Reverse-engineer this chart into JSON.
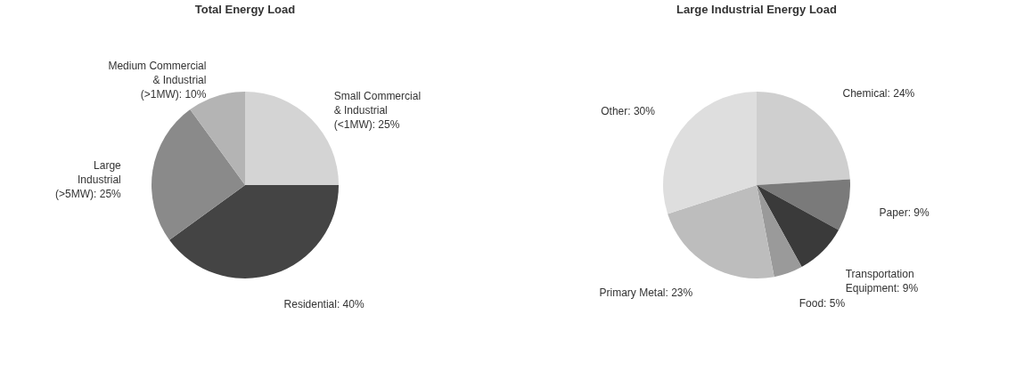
{
  "chart_data": [
    {
      "type": "pie",
      "title": "Total Energy Load",
      "categories": [
        "Small Commercial\n& Industrial\n(<1MW)",
        "Residential",
        "Large\nIndustrial\n(>5MW)",
        "Medium Commercial\n& Industrial\n(>1MW)"
      ],
      "values": [
        25,
        40,
        25,
        10
      ],
      "value_labels": [
        "25%",
        "40%",
        "25%",
        "10%"
      ],
      "colors": [
        "#d4d4d4",
        "#444444",
        "#8a8a8a",
        "#b4b4b4"
      ]
    },
    {
      "type": "pie",
      "title": "Large Industrial Energy Load",
      "categories": [
        "Chemical",
        "Paper",
        "Transportation\nEquipment",
        "Food",
        "Primary Metal",
        "Other"
      ],
      "values": [
        24,
        9,
        9,
        5,
        23,
        30
      ],
      "value_labels": [
        "24%",
        "9%",
        "9%",
        "5%",
        "23%",
        "30%"
      ],
      "colors": [
        "#cfcfcf",
        "#7a7a7a",
        "#3a3a3a",
        "#9a9a9a",
        "#bdbdbd",
        "#dedede"
      ]
    }
  ]
}
